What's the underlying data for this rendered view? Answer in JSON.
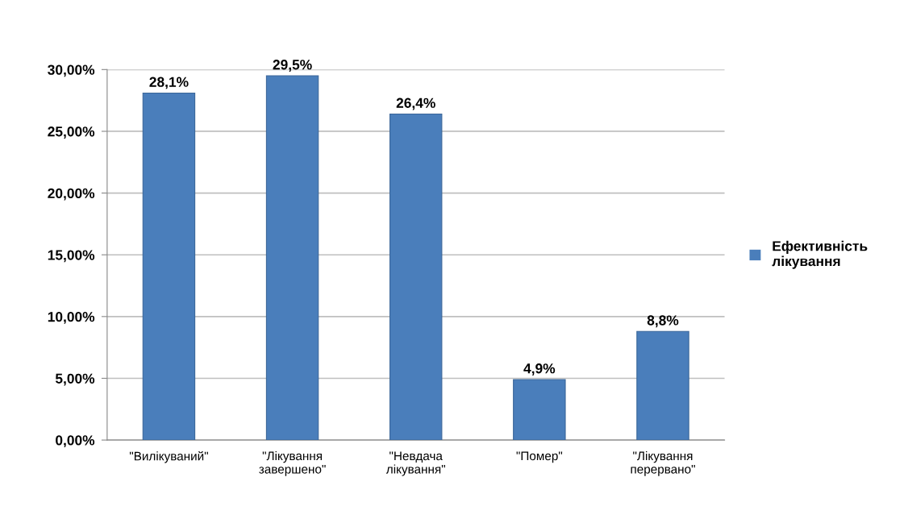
{
  "chart_data": {
    "type": "bar",
    "categories": [
      "\"Вилікуваний\"",
      "\"Лікування\nзавершено\"",
      "\"Невдача\nлікування\"",
      "\"Помер\"",
      "\"Лікування\nперервано\""
    ],
    "series": [
      {
        "name": "Ефективність\nлікування",
        "color": "#4a7ebb",
        "values": [
          28.1,
          29.5,
          26.4,
          4.9,
          8.8
        ],
        "value_labels": [
          "28,1%",
          "29,5%",
          "26,4%",
          "4,9%",
          "8,8%"
        ]
      }
    ],
    "ylim": [
      0,
      30
    ],
    "yticks": [
      {
        "value": 0,
        "label": "0,00%"
      },
      {
        "value": 5,
        "label": "5,00%"
      },
      {
        "value": 10,
        "label": "10,00%"
      },
      {
        "value": 15,
        "label": "15,00%"
      },
      {
        "value": 20,
        "label": "20,00%"
      },
      {
        "value": 25,
        "label": "25,00%"
      },
      {
        "value": 30,
        "label": "30,00%"
      }
    ],
    "grid": "y",
    "legend": "right"
  }
}
